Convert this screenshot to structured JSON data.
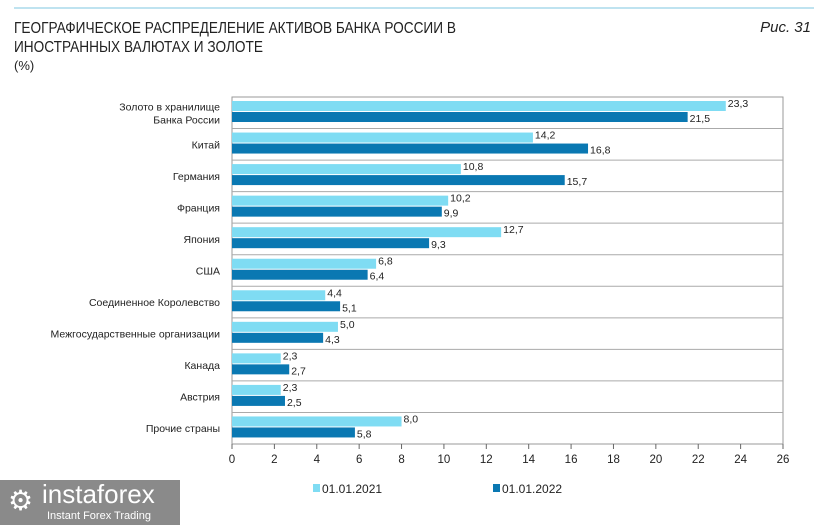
{
  "chart_data": {
    "type": "bar",
    "orientation": "horizontal",
    "title": "ГЕОГРАФИЧЕСКОЕ РАСПРЕДЕЛЕНИЕ АКТИВОВ БАНКА РОССИИ В ИНОСТРАННЫХ ВАЛЮТАХ И ЗОЛОТЕ",
    "unit": "(%)",
    "figure_label": "Рис. 31",
    "categories": [
      [
        "Золото в хранилище",
        "Банка России"
      ],
      [
        "Китай"
      ],
      [
        "Германия"
      ],
      [
        "Франция"
      ],
      [
        "Япония"
      ],
      [
        "США"
      ],
      [
        "Соединенное Королевство"
      ],
      [
        "Межгосударственные организации"
      ],
      [
        "Канада"
      ],
      [
        "Австрия"
      ],
      [
        "Прочие страны"
      ]
    ],
    "series": [
      {
        "name": "01.01.2021",
        "color": "#7fdcf3",
        "values": [
          23.3,
          14.2,
          10.8,
          10.2,
          12.7,
          6.8,
          4.4,
          5.0,
          2.3,
          2.3,
          8.0
        ]
      },
      {
        "name": "01.01.2022",
        "color": "#0a78b2",
        "values": [
          21.5,
          16.8,
          15.7,
          9.9,
          9.3,
          6.4,
          5.1,
          4.3,
          2.7,
          2.5,
          5.8
        ]
      }
    ],
    "xlim": [
      0,
      26
    ],
    "xticks": [
      0,
      2,
      4,
      6,
      8,
      10,
      12,
      14,
      16,
      18,
      20,
      22,
      24,
      26
    ],
    "legend": "bottom"
  },
  "watermark": {
    "brand": "instaforex",
    "tagline": "Instant Forex Trading"
  }
}
